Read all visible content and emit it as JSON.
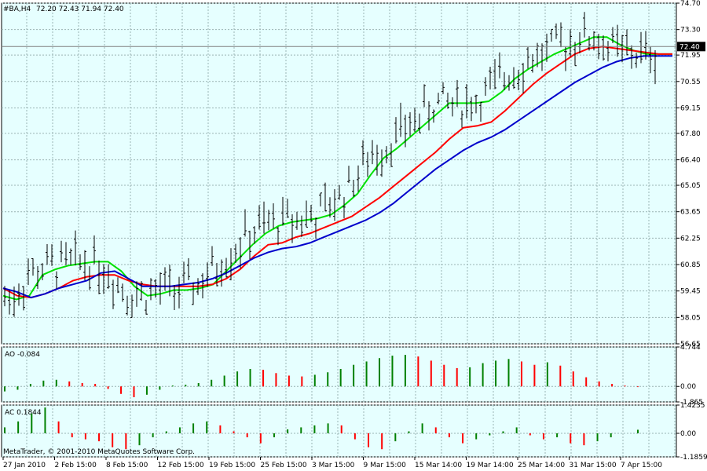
{
  "header": {
    "symbol_title": "#BA,H4",
    "ohlc_text": "72.20 72.43 71.94 72.40"
  },
  "footer": {
    "copyright": "MetaTrader, © 2001-2010 MetaQuotes Software Corp."
  },
  "chart_data": [
    {
      "type": "candlestick-bars",
      "title": "#BA,H4",
      "y_ticks": [
        "74.70",
        "73.30",
        "71.95",
        "70.55",
        "69.15",
        "67.80",
        "66.40",
        "65.05",
        "63.65",
        "62.25",
        "60.85",
        "59.45",
        "58.05",
        "56.65"
      ],
      "ylim": [
        56.65,
        74.7
      ],
      "current_price": "72.40",
      "series": [
        {
          "name": "",
          "color": "#00e000",
          "values": [
            59.2,
            59.0,
            59.2,
            60.3,
            60.6,
            60.8,
            60.9,
            61.0,
            61.0,
            60.5,
            59.7,
            59.2,
            59.3,
            59.5,
            59.5,
            59.6,
            59.8,
            60.5,
            61.2,
            61.9,
            62.5,
            62.9,
            63.1,
            63.2,
            63.3,
            63.5,
            64.0,
            64.6,
            65.6,
            66.5,
            67.0,
            67.6,
            68.2,
            68.8,
            69.4,
            69.4,
            69.4,
            69.5,
            70.0,
            70.7,
            71.2,
            71.6,
            72.0,
            72.3,
            72.6,
            72.9,
            72.9,
            72.5,
            72.2,
            72.0,
            72.0,
            72.0
          ]
        },
        {
          "name": "",
          "color": "#ff0000",
          "values": [
            59.6,
            59.2,
            59.1,
            59.3,
            59.6,
            60.0,
            60.2,
            60.3,
            60.3,
            60.0,
            59.8,
            59.7,
            59.7,
            59.7,
            59.7,
            59.8,
            60.1,
            60.6,
            61.3,
            61.9,
            62.0,
            62.3,
            62.5,
            62.8,
            63.1,
            63.4,
            63.9,
            64.4,
            65.0,
            65.6,
            66.2,
            66.8,
            67.5,
            68.1,
            68.2,
            68.4,
            69.0,
            69.7,
            70.4,
            71.0,
            71.5,
            72.0,
            72.3,
            72.4,
            72.3,
            72.2,
            72.1,
            72.0,
            72.0
          ]
        },
        {
          "name": "",
          "color": "#0000cc",
          "values": [
            59.6,
            59.4,
            59.1,
            59.3,
            59.6,
            59.8,
            60.0,
            60.4,
            60.5,
            60.1,
            59.7,
            59.7,
            59.7,
            59.8,
            59.9,
            60.1,
            60.4,
            60.8,
            61.2,
            61.5,
            61.7,
            61.8,
            62.0,
            62.3,
            62.6,
            62.9,
            63.2,
            63.6,
            64.1,
            64.7,
            65.3,
            65.9,
            66.4,
            66.9,
            67.3,
            67.6,
            68.0,
            68.5,
            69.0,
            69.5,
            70.0,
            70.5,
            70.9,
            71.3,
            71.6,
            71.8,
            71.9,
            71.9,
            71.9
          ]
        }
      ]
    },
    {
      "type": "bar",
      "title": "AO -0.084",
      "y_ticks": [
        "4.744",
        "0.00",
        "-1.865"
      ],
      "ylim": [
        -1.865,
        4.744
      ],
      "values": [
        -0.6,
        -0.4,
        0.3,
        0.7,
        0.8,
        0.6,
        0.4,
        0.3,
        -0.3,
        -0.9,
        -1.3,
        -1.0,
        -0.4,
        0.1,
        0.2,
        0.4,
        0.8,
        1.3,
        1.8,
        2.1,
        2.0,
        1.6,
        1.3,
        1.2,
        1.4,
        1.7,
        2.1,
        2.6,
        3.0,
        3.4,
        3.7,
        3.8,
        3.6,
        3.1,
        2.6,
        2.2,
        2.3,
        2.8,
        3.1,
        3.3,
        3.0,
        2.6,
        2.9,
        2.5,
        1.8,
        1.1,
        0.6,
        0.3,
        0.1,
        -0.08
      ]
    },
    {
      "type": "bar",
      "title": "AC 0.1844",
      "y_ticks": [
        "1.4235",
        "0.00",
        "-1.1859"
      ],
      "ylim": [
        -1.1859,
        1.4235
      ],
      "values": [
        0.3,
        0.6,
        1.0,
        1.3,
        0.6,
        -0.2,
        -0.3,
        -0.4,
        -0.7,
        -0.8,
        -0.6,
        -0.2,
        0.1,
        0.3,
        0.5,
        0.6,
        0.4,
        0.1,
        -0.2,
        -0.5,
        -0.2,
        0.2,
        0.3,
        0.4,
        0.5,
        0.4,
        -0.3,
        -0.7,
        -0.8,
        -0.4,
        0.1,
        0.5,
        0.3,
        -0.2,
        -0.5,
        -0.3,
        -0.1,
        0.1,
        0.3,
        -0.1,
        -0.3,
        -0.2,
        -0.5,
        -0.6,
        -0.4,
        -0.2,
        0.0,
        0.18
      ]
    }
  ],
  "x_axis": {
    "labels": [
      "27 Jan 2010",
      "2 Feb 15:00",
      "8 Feb 15:00",
      "12 Feb 15:00",
      "19 Feb 15:00",
      "25 Feb 15:00",
      "3 Mar 15:00",
      "9 Mar 15:00",
      "15 Mar 14:00",
      "19 Mar 14:00",
      "25 Mar 14:00",
      "31 Mar 15:00",
      "7 Apr 15:00"
    ]
  },
  "colors": {
    "background": "#e6ffff",
    "grid": "#9ab4b4",
    "bars": "#000000",
    "ao_up": "#008000",
    "ao_down": "#ff0000",
    "frame": "#000000"
  }
}
